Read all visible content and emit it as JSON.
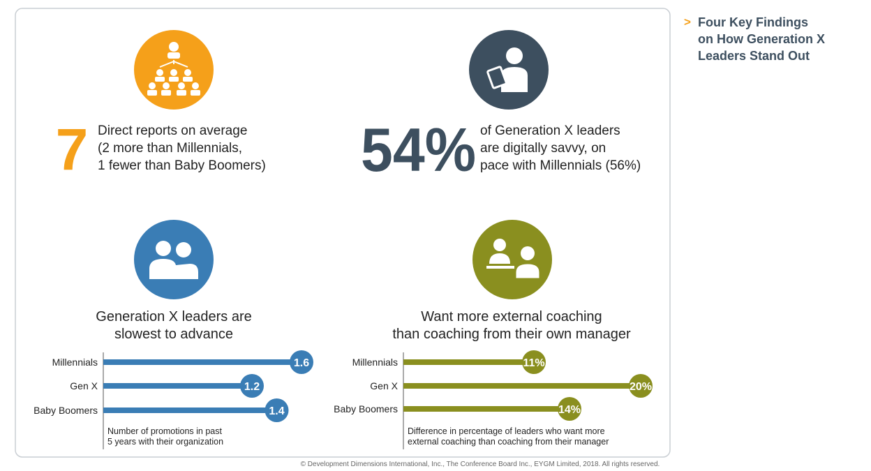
{
  "sidebar": {
    "marker": ">",
    "title": [
      "Four Key Findings",
      "on How Generation X",
      "Leaders Stand Out"
    ]
  },
  "findings": [
    {
      "stat": "7",
      "lines": [
        "Direct reports on average",
        "(2 more than Millennials,",
        "1 fewer than Baby Boomers)"
      ]
    },
    {
      "stat": "54%",
      "lines": [
        "of Generation X leaders",
        "are digitally savvy, on",
        "pace with Millennials (56%)"
      ]
    }
  ],
  "chart_data": [
    {
      "type": "bar",
      "title": [
        "Generation X leaders are",
        "slowest to advance"
      ],
      "categories": [
        "Millennials",
        "Gen X",
        "Baby Boomers"
      ],
      "values": [
        1.6,
        1.2,
        1.4
      ],
      "color": "#3a7db5",
      "note": [
        "Number of promotions in past",
        "5 years with their organization"
      ]
    },
    {
      "type": "bar",
      "title": [
        "Want more external coaching",
        "than coaching from their own manager"
      ],
      "categories": [
        "Millennials",
        "Gen X",
        "Baby Boomers"
      ],
      "values": [
        11,
        20,
        14
      ],
      "value_labels": [
        "11%",
        "20%",
        "14%"
      ],
      "color": "#8a8f1f",
      "note": [
        "Difference in percentage of leaders who want more",
        "external coaching than coaching from their manager"
      ]
    }
  ],
  "footer": "© Development Dimensions International, Inc., The Conference Board Inc., EYGM Limited, 2018. All rights reserved."
}
